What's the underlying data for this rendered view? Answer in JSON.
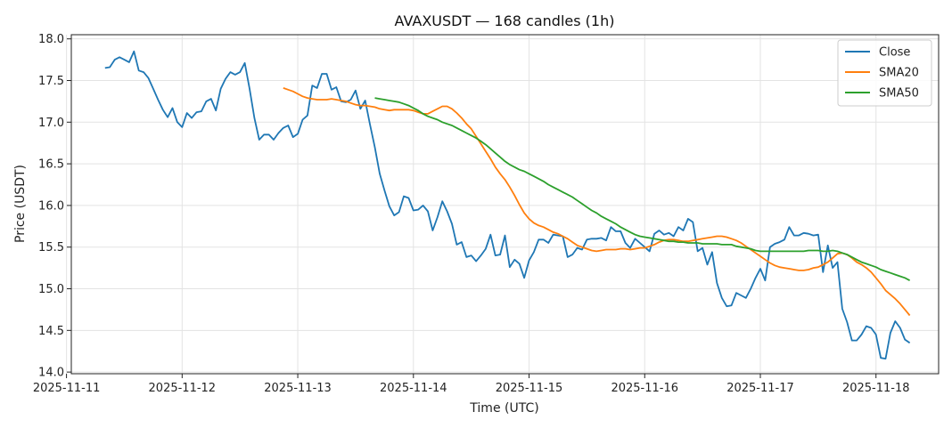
{
  "chart_data": {
    "type": "line",
    "title": "AVAXUSDT — 168 candles (1h)",
    "xlabel": "Time (UTC)",
    "ylabel": "Price (USDT)",
    "ylim": [
      13.98,
      18.05
    ],
    "xlim": [
      "2025-11-11 01:00",
      "2025-11-18 13:00"
    ],
    "grid": true,
    "legend_position": "top-right",
    "x_ticks": [
      "2025-11-11",
      "2025-11-12",
      "2025-11-13",
      "2025-11-14",
      "2025-11-15",
      "2025-11-16",
      "2025-11-17",
      "2025-11-18"
    ],
    "y_ticks": [
      "14.0",
      "14.5",
      "15.0",
      "15.5",
      "16.0",
      "16.5",
      "17.0",
      "17.5",
      "18.0"
    ],
    "start_time": "2025-11-11 08:00",
    "interval_hours": 1,
    "series": [
      {
        "name": "Close",
        "color": "#1f77b4",
        "values": [
          17.65,
          17.66,
          17.75,
          17.78,
          17.75,
          17.72,
          17.85,
          17.62,
          17.6,
          17.53,
          17.4,
          17.27,
          17.15,
          17.06,
          17.17,
          17.0,
          16.94,
          17.11,
          17.05,
          17.12,
          17.13,
          17.25,
          17.28,
          17.14,
          17.4,
          17.52,
          17.6,
          17.57,
          17.6,
          17.71,
          17.4,
          17.05,
          16.79,
          16.85,
          16.85,
          16.79,
          16.87,
          16.93,
          16.96,
          16.82,
          16.86,
          17.03,
          17.08,
          17.44,
          17.41,
          17.58,
          17.58,
          17.39,
          17.42,
          17.25,
          17.24,
          17.27,
          17.38,
          17.16,
          17.26,
          16.97,
          16.7,
          16.38,
          16.18,
          15.99,
          15.88,
          15.92,
          16.11,
          16.09,
          15.94,
          15.95,
          16.0,
          15.93,
          15.7,
          15.86,
          16.05,
          15.93,
          15.78,
          15.53,
          15.56,
          15.38,
          15.4,
          15.33,
          15.4,
          15.48,
          15.65,
          15.4,
          15.41,
          15.64,
          15.26,
          15.35,
          15.3,
          15.13,
          15.34,
          15.44,
          15.59,
          15.59,
          15.55,
          15.65,
          15.64,
          15.63,
          15.38,
          15.41,
          15.49,
          15.47,
          15.59,
          15.6,
          15.6,
          15.61,
          15.58,
          15.74,
          15.69,
          15.69,
          15.55,
          15.49,
          15.6,
          15.55,
          15.5,
          15.45,
          15.66,
          15.7,
          15.65,
          15.67,
          15.63,
          15.74,
          15.7,
          15.84,
          15.8,
          15.45,
          15.49,
          15.29,
          15.44,
          15.07,
          14.89,
          14.79,
          14.8,
          14.95,
          14.92,
          14.89,
          15.0,
          15.13,
          15.24,
          15.1,
          15.5,
          15.54,
          15.56,
          15.59,
          15.74,
          15.64,
          15.64,
          15.67,
          15.66,
          15.64,
          15.65,
          15.2,
          15.52,
          15.25,
          15.32,
          14.76,
          14.6,
          14.38,
          14.38,
          14.45,
          14.55,
          14.53,
          14.45,
          14.17,
          14.16,
          14.47,
          14.61,
          14.53,
          14.39,
          14.35
        ]
      },
      {
        "name": "SMA20",
        "color": "#ff7f0e",
        "values": [
          17.41,
          17.39,
          17.37,
          17.34,
          17.31,
          17.29,
          17.28,
          17.27,
          17.27,
          17.27,
          17.28,
          17.27,
          17.26,
          17.25,
          17.23,
          17.21,
          17.2,
          17.2,
          17.19,
          17.18,
          17.16,
          17.15,
          17.14,
          17.15,
          17.15,
          17.15,
          17.15,
          17.14,
          17.12,
          17.1,
          17.1,
          17.13,
          17.16,
          17.19,
          17.19,
          17.16,
          17.11,
          17.05,
          16.98,
          16.92,
          16.83,
          16.74,
          16.65,
          16.56,
          16.46,
          16.38,
          16.31,
          16.22,
          16.12,
          16.01,
          15.91,
          15.84,
          15.79,
          15.76,
          15.74,
          15.71,
          15.68,
          15.66,
          15.63,
          15.6,
          15.56,
          15.52,
          15.5,
          15.48,
          15.46,
          15.45,
          15.46,
          15.47,
          15.47,
          15.47,
          15.48,
          15.48,
          15.47,
          15.48,
          15.49,
          15.49,
          15.51,
          15.53,
          15.56,
          15.58,
          15.59,
          15.59,
          15.58,
          15.57,
          15.57,
          15.58,
          15.59,
          15.6,
          15.61,
          15.62,
          15.63,
          15.63,
          15.62,
          15.6,
          15.58,
          15.55,
          15.51,
          15.47,
          15.43,
          15.39,
          15.35,
          15.31,
          15.28,
          15.26,
          15.25,
          15.24,
          15.23,
          15.22,
          15.22,
          15.23,
          15.25,
          15.26,
          15.29,
          15.32,
          15.37,
          15.42,
          15.43,
          15.41,
          15.37,
          15.32,
          15.29,
          15.25,
          15.2,
          15.13,
          15.06,
          14.98,
          14.93,
          14.88,
          14.82,
          14.75,
          14.68
        ]
      },
      {
        "name": "SMA50",
        "color": "#2ca02c",
        "values": [
          17.29,
          17.28,
          17.27,
          17.26,
          17.25,
          17.24,
          17.22,
          17.2,
          17.17,
          17.14,
          17.1,
          17.07,
          17.05,
          17.03,
          17.0,
          16.98,
          16.96,
          16.93,
          16.9,
          16.87,
          16.84,
          16.81,
          16.77,
          16.73,
          16.68,
          16.63,
          16.58,
          16.53,
          16.49,
          16.46,
          16.43,
          16.41,
          16.38,
          16.35,
          16.32,
          16.29,
          16.25,
          16.22,
          16.19,
          16.16,
          16.13,
          16.1,
          16.06,
          16.02,
          15.98,
          15.94,
          15.91,
          15.87,
          15.84,
          15.81,
          15.78,
          15.74,
          15.71,
          15.68,
          15.65,
          15.63,
          15.62,
          15.61,
          15.6,
          15.59,
          15.58,
          15.57,
          15.57,
          15.56,
          15.56,
          15.55,
          15.55,
          15.55,
          15.54,
          15.54,
          15.54,
          15.54,
          15.53,
          15.53,
          15.53,
          15.51,
          15.5,
          15.49,
          15.48,
          15.46,
          15.45,
          15.45,
          15.45,
          15.45,
          15.45,
          15.45,
          15.45,
          15.45,
          15.45,
          15.45,
          15.46,
          15.46,
          15.46,
          15.45,
          15.45,
          15.46,
          15.45,
          15.43,
          15.41,
          15.38,
          15.35,
          15.32,
          15.3,
          15.28,
          15.26,
          15.23,
          15.21,
          15.19,
          15.17,
          15.15,
          15.13,
          15.1
        ]
      }
    ]
  }
}
